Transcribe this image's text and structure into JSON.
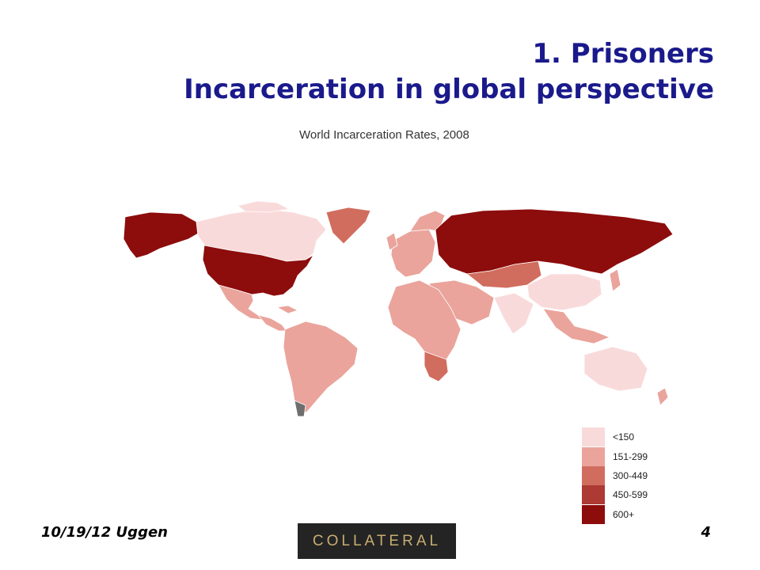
{
  "slide": {
    "title_line1": "1. Prisoners",
    "title_line2": "Incarceration in global perspective"
  },
  "map": {
    "title": "World Incarceration Rates, 2008",
    "colors": {
      "lt150": "#f9dada",
      "c151_299": "#eaa49c",
      "c300_449": "#d16d5e",
      "c450_599": "#ad3a34",
      "c600plus": "#8d0c0c",
      "nodata": "#6e6e6e"
    },
    "regions": [
      {
        "name": "Alaska",
        "category": "600+"
      },
      {
        "name": "Canada",
        "category": "<150"
      },
      {
        "name": "Greenland",
        "category": "300-449"
      },
      {
        "name": "United States",
        "category": "600+"
      },
      {
        "name": "Mexico",
        "category": "151-299"
      },
      {
        "name": "Central America",
        "category": "151-299"
      },
      {
        "name": "South America",
        "category": "151-299"
      },
      {
        "name": "Western Europe",
        "category": "151-299"
      },
      {
        "name": "Russia",
        "category": "600+"
      },
      {
        "name": "Kazakhstan",
        "category": "300-449"
      },
      {
        "name": "Middle East",
        "category": "151-299"
      },
      {
        "name": "Africa",
        "category": "151-299"
      },
      {
        "name": "South Africa",
        "category": "300-449"
      },
      {
        "name": "China",
        "category": "<150"
      },
      {
        "name": "India",
        "category": "<150"
      },
      {
        "name": "Southeast Asia",
        "category": "151-299"
      },
      {
        "name": "Australia",
        "category": "<150"
      },
      {
        "name": "New Zealand",
        "category": "151-299"
      }
    ],
    "legend": [
      {
        "label": "<150",
        "color": "#f9dada"
      },
      {
        "label": "151-299",
        "color": "#eaa49c"
      },
      {
        "label": "300-449",
        "color": "#d16d5e"
      },
      {
        "label": "450-599",
        "color": "#ad3a34"
      },
      {
        "label": "600+",
        "color": "#8d0c0c"
      }
    ]
  },
  "footer": {
    "date_author": "10/19/12 Uggen",
    "logo_text": "COLLATERAL",
    "page_number": "4"
  }
}
